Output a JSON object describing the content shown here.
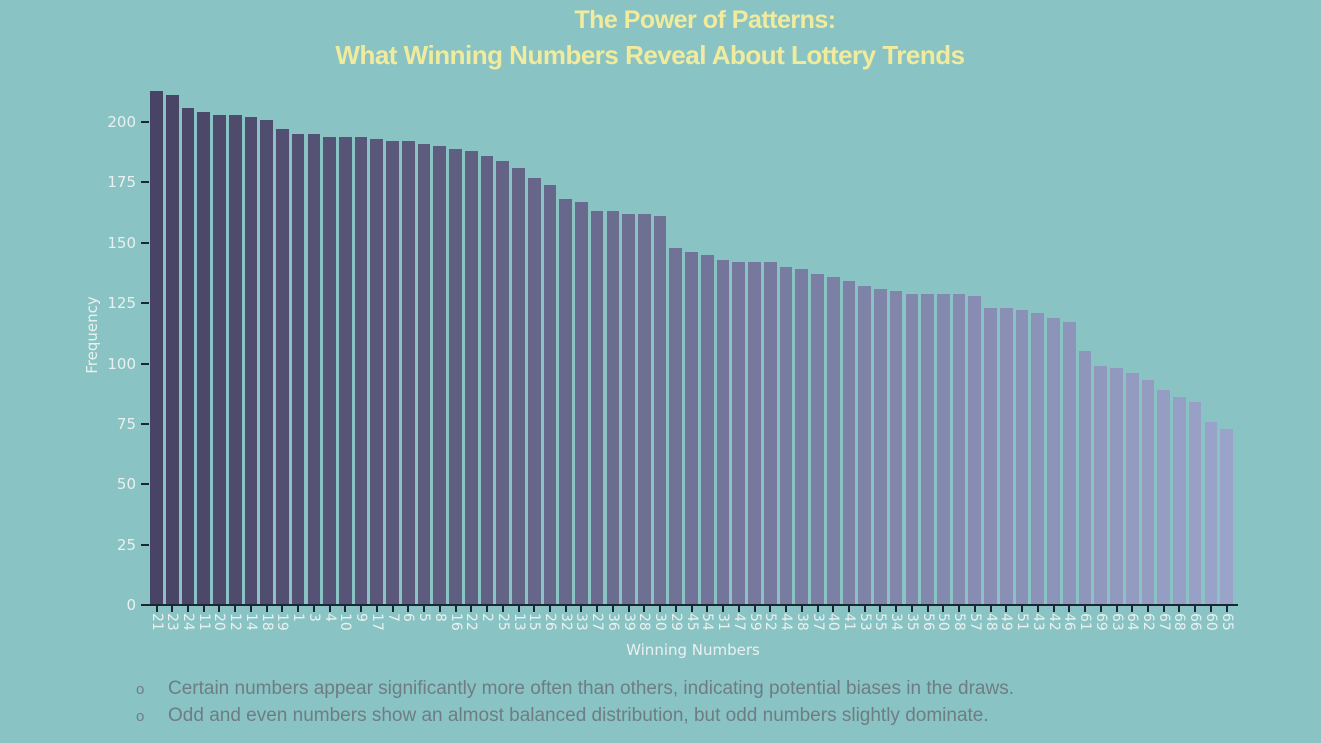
{
  "colors": {
    "background": "#8ac3c3",
    "title_text": "#f1eb9d",
    "tick_text": "#e9f1f0",
    "axis_line": "#1d2733",
    "note_text": "#6e7d84"
  },
  "chart_data": {
    "type": "bar",
    "title_lines": [
      "The Power of Patterns:",
      "What Winning Numbers Reveal About Lottery Trends"
    ],
    "xlabel": "Winning Numbers",
    "ylabel": "Frequency",
    "categories": [
      "21",
      "23",
      "24",
      "11",
      "20",
      "12",
      "14",
      "18",
      "19",
      "1",
      "3",
      "4",
      "10",
      "9",
      "17",
      "7",
      "6",
      "5",
      "8",
      "16",
      "22",
      "2",
      "25",
      "13",
      "15",
      "26",
      "32",
      "33",
      "27",
      "36",
      "39",
      "28",
      "30",
      "29",
      "45",
      "54",
      "31",
      "47",
      "59",
      "52",
      "44",
      "38",
      "37",
      "40",
      "41",
      "53",
      "55",
      "34",
      "35",
      "56",
      "50",
      "58",
      "57",
      "48",
      "49",
      "51",
      "43",
      "42",
      "46",
      "61",
      "69",
      "63",
      "64",
      "62",
      "67",
      "68",
      "66",
      "60",
      "65"
    ],
    "values": [
      213,
      211,
      206,
      204,
      203,
      203,
      202,
      201,
      197,
      195,
      195,
      194,
      194,
      194,
      193,
      192,
      192,
      191,
      190,
      189,
      188,
      186,
      184,
      181,
      177,
      174,
      168,
      167,
      163,
      163,
      162,
      162,
      161,
      148,
      146,
      145,
      143,
      142,
      142,
      142,
      140,
      139,
      137,
      136,
      134,
      132,
      131,
      130,
      129,
      129,
      129,
      129,
      128,
      123,
      123,
      122,
      121,
      119,
      117,
      105,
      99,
      98,
      96,
      93,
      89,
      86,
      84,
      76,
      73
    ],
    "yticks": [
      0,
      25,
      50,
      75,
      100,
      125,
      150,
      175,
      200
    ],
    "ylim": [
      0,
      215
    ],
    "grid": false,
    "legend": false,
    "sort_order": "descending",
    "bar_color_start": "#484466",
    "bar_color_end": "#9aa3c9",
    "annotation_bullet": "o",
    "annotations": [
      "Certain numbers appear significantly more often than others, indicating potential biases in the draws.",
      "Odd and even numbers show an almost balanced distribution, but odd numbers slightly dominate."
    ]
  }
}
